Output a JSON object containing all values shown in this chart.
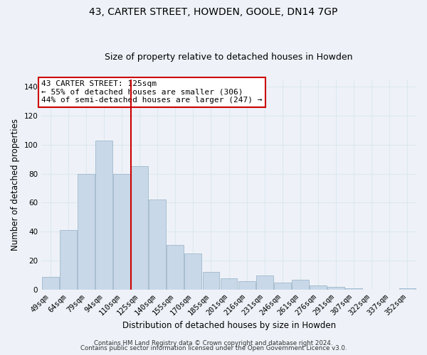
{
  "title": "43, CARTER STREET, HOWDEN, GOOLE, DN14 7GP",
  "subtitle": "Size of property relative to detached houses in Howden",
  "xlabel": "Distribution of detached houses by size in Howden",
  "ylabel": "Number of detached properties",
  "categories": [
    "49sqm",
    "64sqm",
    "79sqm",
    "94sqm",
    "110sqm",
    "125sqm",
    "140sqm",
    "155sqm",
    "170sqm",
    "185sqm",
    "201sqm",
    "216sqm",
    "231sqm",
    "246sqm",
    "261sqm",
    "276sqm",
    "291sqm",
    "307sqm",
    "322sqm",
    "337sqm",
    "352sqm"
  ],
  "values": [
    9,
    41,
    80,
    103,
    80,
    85,
    62,
    31,
    25,
    12,
    8,
    6,
    10,
    5,
    7,
    3,
    2,
    1,
    0,
    0,
    1
  ],
  "bar_color": "#c8d8e8",
  "bar_edge_color": "#a0b8cc",
  "vline_color": "#cc0000",
  "ylim": [
    0,
    145
  ],
  "yticks": [
    0,
    20,
    40,
    60,
    80,
    100,
    120,
    140
  ],
  "annotation_text": "43 CARTER STREET: 125sqm\n← 55% of detached houses are smaller (306)\n44% of semi-detached houses are larger (247) →",
  "annotation_box_color": "#ffffff",
  "annotation_box_edge": "#cc0000",
  "footer_line1": "Contains HM Land Registry data © Crown copyright and database right 2024.",
  "footer_line2": "Contains public sector information licensed under the Open Government Licence v3.0.",
  "grid_color": "#dce8f0",
  "background_color": "#eef2f8",
  "title_fontsize": 10,
  "subtitle_fontsize": 9,
  "axis_label_fontsize": 8.5,
  "tick_fontsize": 7.5,
  "annotation_fontsize": 8,
  "footer_fontsize": 6.2
}
